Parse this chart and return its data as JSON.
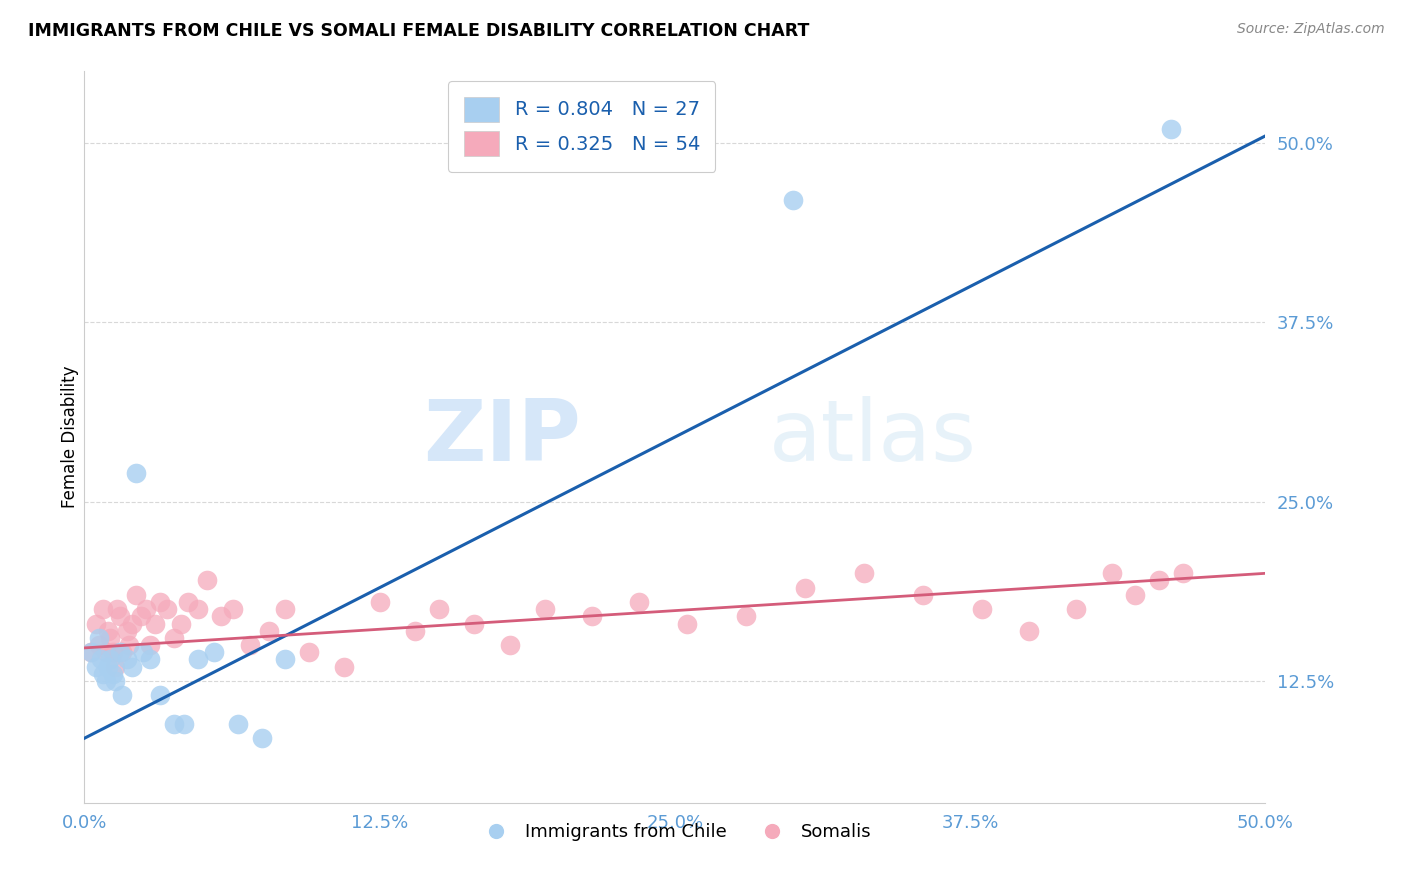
{
  "title": "IMMIGRANTS FROM CHILE VS SOMALI FEMALE DISABILITY CORRELATION CHART",
  "source": "Source: ZipAtlas.com",
  "ylabel": "Female Disability",
  "watermark_zip": "ZIP",
  "watermark_atlas": "atlas",
  "xlim": [
    0.0,
    0.5
  ],
  "ylim": [
    0.04,
    0.55
  ],
  "xticks": [
    0.0,
    0.125,
    0.25,
    0.375,
    0.5
  ],
  "yticks": [
    0.125,
    0.25,
    0.375,
    0.5
  ],
  "ytick_labels": [
    "12.5%",
    "25.0%",
    "37.5%",
    "50.0%"
  ],
  "xtick_labels": [
    "0.0%",
    "12.5%",
    "25.0%",
    "37.5%",
    "50.0%"
  ],
  "chile_scatter_color": "#a8cff0",
  "somali_scatter_color": "#f5aabb",
  "chile_line_color": "#1a5fad",
  "somali_line_color": "#d45c7a",
  "tick_color": "#5b9bd5",
  "legend_R_chile": "R = 0.804",
  "legend_N_chile": "N = 27",
  "legend_R_somali": "R = 0.325",
  "legend_N_somali": "N = 54",
  "legend_text_color": "#1a5fad",
  "chile_scatter_x": [
    0.003,
    0.005,
    0.006,
    0.007,
    0.008,
    0.009,
    0.01,
    0.011,
    0.012,
    0.013,
    0.015,
    0.016,
    0.018,
    0.02,
    0.022,
    0.025,
    0.028,
    0.032,
    0.038,
    0.042,
    0.048,
    0.055,
    0.065,
    0.075,
    0.085,
    0.3,
    0.46
  ],
  "chile_scatter_y": [
    0.145,
    0.135,
    0.155,
    0.14,
    0.13,
    0.125,
    0.135,
    0.14,
    0.13,
    0.125,
    0.145,
    0.115,
    0.14,
    0.135,
    0.27,
    0.145,
    0.14,
    0.115,
    0.095,
    0.095,
    0.14,
    0.145,
    0.095,
    0.085,
    0.14,
    0.46,
    0.51
  ],
  "somali_scatter_x": [
    0.003,
    0.005,
    0.006,
    0.008,
    0.009,
    0.01,
    0.011,
    0.012,
    0.013,
    0.014,
    0.015,
    0.016,
    0.018,
    0.019,
    0.02,
    0.022,
    0.024,
    0.026,
    0.028,
    0.03,
    0.032,
    0.035,
    0.038,
    0.041,
    0.044,
    0.048,
    0.052,
    0.058,
    0.063,
    0.07,
    0.078,
    0.085,
    0.095,
    0.11,
    0.125,
    0.14,
    0.15,
    0.165,
    0.18,
    0.195,
    0.215,
    0.235,
    0.255,
    0.28,
    0.305,
    0.33,
    0.355,
    0.38,
    0.4,
    0.42,
    0.435,
    0.445,
    0.455,
    0.465
  ],
  "somali_scatter_y": [
    0.145,
    0.165,
    0.15,
    0.175,
    0.145,
    0.16,
    0.155,
    0.145,
    0.135,
    0.175,
    0.17,
    0.145,
    0.16,
    0.15,
    0.165,
    0.185,
    0.17,
    0.175,
    0.15,
    0.165,
    0.18,
    0.175,
    0.155,
    0.165,
    0.18,
    0.175,
    0.195,
    0.17,
    0.175,
    0.15,
    0.16,
    0.175,
    0.145,
    0.135,
    0.18,
    0.16,
    0.175,
    0.165,
    0.15,
    0.175,
    0.17,
    0.18,
    0.165,
    0.17,
    0.19,
    0.2,
    0.185,
    0.175,
    0.16,
    0.175,
    0.2,
    0.185,
    0.195,
    0.2
  ],
  "chile_line_x": [
    0.0,
    0.5
  ],
  "chile_line_y": [
    0.085,
    0.505
  ],
  "somali_line_x": [
    0.0,
    0.5
  ],
  "somali_line_y": [
    0.148,
    0.2
  ],
  "background_color": "#ffffff",
  "grid_color": "#d8d8d8"
}
